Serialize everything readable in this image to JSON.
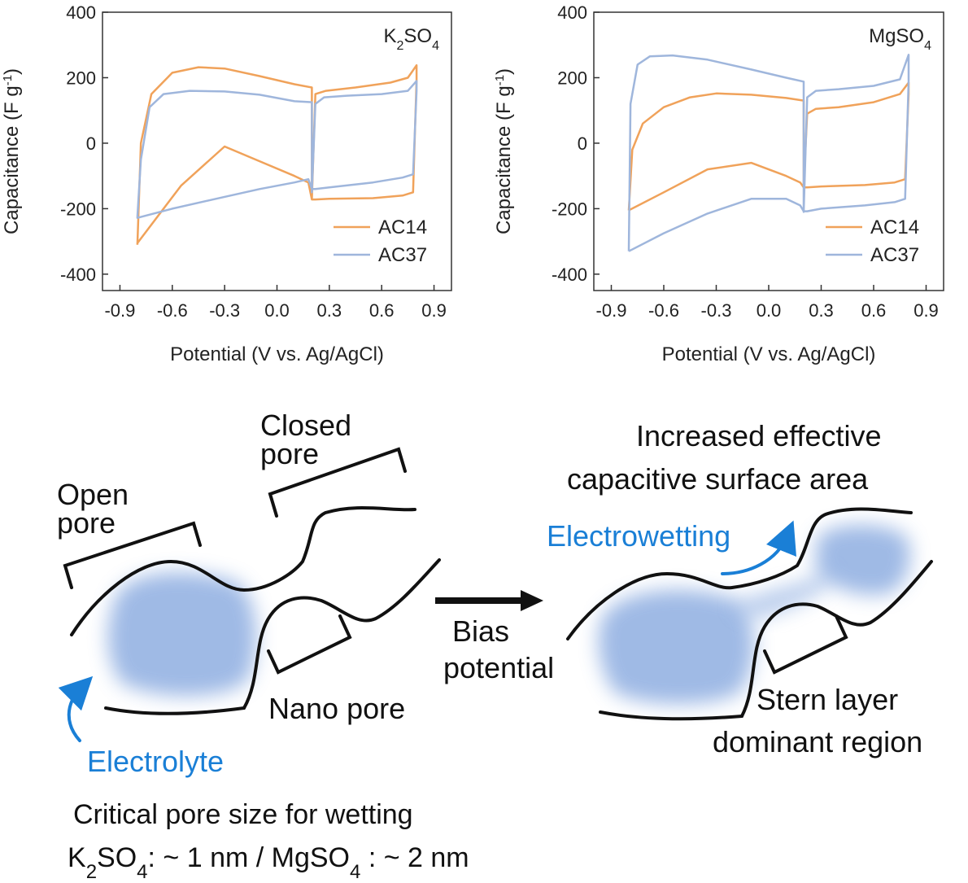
{
  "chart_data": [
    {
      "type": "line",
      "panel_label": "K2SO4",
      "xlabel": "Potential (V vs. Ag/AgCl)",
      "ylabel": "Capacitance (F g-1)",
      "xlim": [
        -1.0,
        1.0
      ],
      "ylim": [
        -450,
        400
      ],
      "xticks": [
        "-0.9",
        "-0.6",
        "-0.3",
        "0.0",
        "0.3",
        "0.6",
        "0.9"
      ],
      "yticks": [
        "400",
        "200",
        "0",
        "-200",
        "-400"
      ],
      "legend_position": "bottom-right",
      "series": [
        {
          "name": "AC14",
          "color": "#f0a25a",
          "x": [
            -0.8,
            -0.78,
            -0.72,
            -0.6,
            -0.45,
            -0.3,
            -0.1,
            0.1,
            0.2,
            0.2,
            0.2,
            0.22,
            0.28,
            0.45,
            0.65,
            0.75,
            0.8,
            0.8,
            0.78,
            0.72,
            0.55,
            0.3,
            0.22,
            0.2,
            0.18,
            0.1,
            -0.1,
            -0.3,
            -0.55,
            -0.8,
            -0.8
          ],
          "y": [
            -310,
            0,
            150,
            215,
            232,
            228,
            205,
            180,
            170,
            170,
            -170,
            150,
            160,
            170,
            185,
            200,
            238,
            195,
            -150,
            -160,
            -168,
            -170,
            -172,
            -172,
            -120,
            -100,
            -55,
            -10,
            -130,
            -305,
            -310
          ]
        },
        {
          "name": "AC37",
          "color": "#9fb6dc",
          "x": [
            -0.8,
            -0.78,
            -0.73,
            -0.65,
            -0.5,
            -0.3,
            -0.1,
            0.1,
            0.2,
            0.2,
            0.22,
            0.27,
            0.4,
            0.6,
            0.75,
            0.8,
            0.8,
            0.78,
            0.72,
            0.55,
            0.3,
            0.22,
            0.2,
            0.18,
            0.1,
            -0.1,
            -0.35,
            -0.6,
            -0.8,
            -0.8
          ],
          "y": [
            -225,
            -50,
            110,
            150,
            160,
            158,
            148,
            128,
            125,
            -150,
            120,
            140,
            145,
            150,
            160,
            190,
            160,
            -95,
            -105,
            -120,
            -135,
            -140,
            -140,
            -110,
            -120,
            -140,
            -170,
            -200,
            -228,
            -225
          ]
        }
      ]
    },
    {
      "type": "line",
      "panel_label": "MgSO4",
      "xlabel": "Potential (V vs. Ag/AgCl)",
      "ylabel": "Capacitance (F g-1)",
      "xlim": [
        -1.0,
        1.0
      ],
      "ylim": [
        -450,
        400
      ],
      "xticks": [
        "-0.9",
        "-0.6",
        "-0.3",
        "0.0",
        "0.3",
        "0.6",
        "0.9"
      ],
      "yticks": [
        "400",
        "200",
        "0",
        "-200",
        "-400"
      ],
      "legend_position": "bottom-right",
      "series": [
        {
          "name": "AC14",
          "color": "#f0a25a",
          "x": [
            -0.8,
            -0.78,
            -0.72,
            -0.6,
            -0.45,
            -0.3,
            -0.1,
            0.1,
            0.2,
            0.2,
            0.22,
            0.27,
            0.4,
            0.6,
            0.75,
            0.8,
            0.8,
            0.78,
            0.72,
            0.55,
            0.3,
            0.22,
            0.2,
            0.18,
            0.1,
            -0.1,
            -0.35,
            -0.6,
            -0.8,
            -0.8
          ],
          "y": [
            -205,
            -20,
            60,
            110,
            140,
            152,
            148,
            138,
            130,
            -130,
            90,
            105,
            110,
            125,
            150,
            185,
            150,
            -110,
            -120,
            -128,
            -132,
            -135,
            -135,
            -120,
            -100,
            -60,
            -80,
            -150,
            -205,
            -205
          ]
        },
        {
          "name": "AC37",
          "color": "#9fb6dc",
          "x": [
            -0.8,
            -0.79,
            -0.75,
            -0.68,
            -0.55,
            -0.35,
            -0.1,
            0.1,
            0.2,
            0.2,
            0.22,
            0.27,
            0.4,
            0.6,
            0.75,
            0.8,
            0.8,
            0.78,
            0.72,
            0.55,
            0.3,
            0.22,
            0.2,
            0.18,
            0.1,
            -0.1,
            -0.35,
            -0.6,
            -0.8,
            -0.8
          ],
          "y": [
            -330,
            120,
            240,
            265,
            268,
            255,
            225,
            200,
            188,
            -210,
            140,
            160,
            165,
            175,
            195,
            270,
            190,
            -170,
            -180,
            -190,
            -200,
            -208,
            -208,
            -190,
            -170,
            -170,
            -215,
            -275,
            -330,
            -330
          ]
        }
      ]
    }
  ],
  "diagram": {
    "closed_pore": [
      "Closed",
      "pore"
    ],
    "open_pore": [
      "Open",
      "pore"
    ],
    "nano_pore": "Nano pore",
    "electrolyte": "Electrolyte",
    "bias": [
      "Bias",
      "potential"
    ],
    "increased": [
      "Increased effective",
      "capacitive surface area"
    ],
    "electrowetting": "Electrowetting",
    "stern": [
      "Stern layer",
      "dominant region"
    ],
    "note_line1": "Critical pore size for wetting",
    "note_line2_parts": [
      "K",
      "2",
      "SO",
      "4",
      ": ~ 1 nm / MgSO",
      "4",
      " : ~ 2 nm"
    ]
  }
}
